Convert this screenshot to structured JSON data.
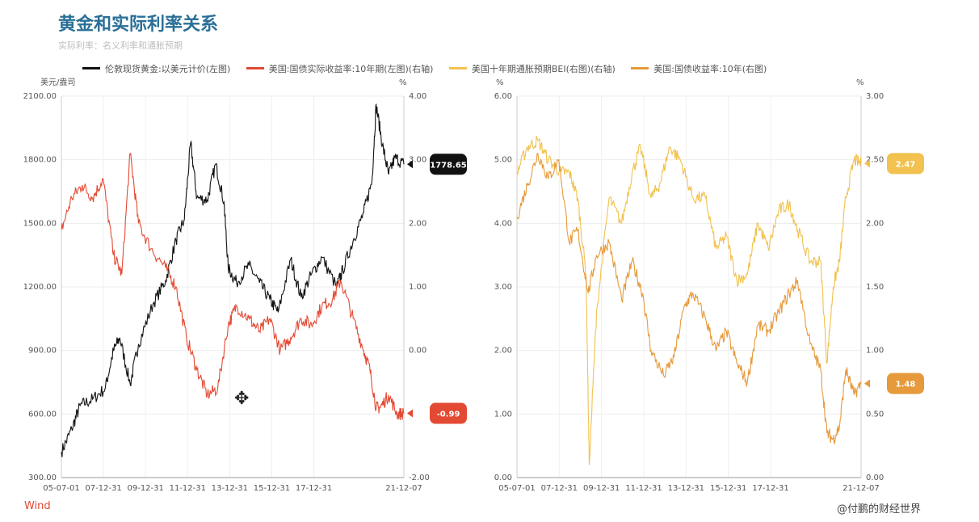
{
  "header": {
    "title": "黄金和实际利率关系",
    "subtitle": "实际利率：名义利率和通胀预期"
  },
  "legend": [
    {
      "label": "伦敦现货黄金:以美元计价(左图)",
      "color": "#111111"
    },
    {
      "label": "美国:国债实际收益率:10年期(左图)(右轴)",
      "color": "#e34a33"
    },
    {
      "label": "美国十年期通胀预期BEI(右图)(右轴)",
      "color": "#f2c14e"
    },
    {
      "label": "美国:国债收益率:10年(右图)",
      "color": "#e69a3b"
    }
  ],
  "footer": {
    "source": "Wind",
    "watermark": "@付鹏的财经世界"
  },
  "chart_data": [
    {
      "type": "line",
      "left_axis_unit": "美元/盎司",
      "right_axis_unit": "%",
      "left_ylim": [
        300,
        2100
      ],
      "left_ticks": [
        "300.00",
        "600.00",
        "900.00",
        "1200.00",
        "1500.00",
        "1800.00",
        "2100.00"
      ],
      "right_ylim": [
        -2,
        4
      ],
      "right_ticks": [
        "-2.00",
        "0.00",
        "1.00",
        "2.00",
        "3.00",
        "4.00"
      ],
      "x_ticks": [
        "05-07-01",
        "07-12-31",
        "09-12-31",
        "11-12-31",
        "13-12-31",
        "15-12-31",
        "17-12-31",
        "21-12-07"
      ],
      "x_range": [
        2005.5,
        2021.93
      ],
      "series": [
        {
          "name": "伦敦现货黄金:以美元计价(左图)",
          "axis": "left",
          "color": "#111111",
          "x": [
            2005.5,
            2006.0,
            2006.4,
            2007.0,
            2007.6,
            2008.0,
            2008.3,
            2008.8,
            2009.2,
            2009.9,
            2010.5,
            2011.0,
            2011.4,
            2011.7,
            2012.0,
            2012.5,
            2012.9,
            2013.3,
            2013.5,
            2013.9,
            2014.5,
            2015.0,
            2015.5,
            2015.9,
            2016.5,
            2017.0,
            2017.5,
            2018.0,
            2018.7,
            2019.0,
            2019.5,
            2020.0,
            2020.4,
            2020.6,
            2020.9,
            2021.2,
            2021.5,
            2021.93
          ],
          "values": [
            420,
            530,
            640,
            670,
            720,
            900,
            960,
            740,
            930,
            1120,
            1230,
            1420,
            1520,
            1880,
            1620,
            1610,
            1780,
            1600,
            1290,
            1220,
            1300,
            1220,
            1140,
            1080,
            1330,
            1150,
            1260,
            1340,
            1200,
            1280,
            1420,
            1550,
            1700,
            2060,
            1870,
            1730,
            1810,
            1778.65
          ]
        },
        {
          "name": "美国:国债实际收益率:10年期(左图)(右轴)",
          "axis": "right",
          "color": "#e34a33",
          "x": [
            2005.5,
            2006.0,
            2006.5,
            2007.0,
            2007.5,
            2008.0,
            2008.4,
            2008.8,
            2009.2,
            2009.8,
            2010.5,
            2011.0,
            2011.5,
            2012.0,
            2012.5,
            2013.0,
            2013.5,
            2013.9,
            2014.5,
            2015.0,
            2015.5,
            2016.0,
            2016.5,
            2017.0,
            2017.5,
            2018.0,
            2018.5,
            2018.9,
            2019.5,
            2020.0,
            2020.3,
            2020.6,
            2020.8,
            2021.2,
            2021.6,
            2021.93
          ],
          "values": [
            1.9,
            2.4,
            2.6,
            2.4,
            2.7,
            1.5,
            1.2,
            3.1,
            2.0,
            1.6,
            1.3,
            1.0,
            0.2,
            -0.3,
            -0.7,
            -0.6,
            0.4,
            0.7,
            0.5,
            0.3,
            0.5,
            0.0,
            0.2,
            0.5,
            0.4,
            0.7,
            0.8,
            1.1,
            0.5,
            0.0,
            -0.3,
            -0.9,
            -0.9,
            -0.7,
            -1.0,
            -0.99
          ]
        }
      ],
      "labels": [
        {
          "series": "伦敦现货黄金:以美元计价(左图)",
          "value": "1778.65",
          "axis_value": 1778.65,
          "axis": "left"
        },
        {
          "series": "美国:国债实际收益率:10年期(左图)(右轴)",
          "value": "-0.99",
          "axis_value": -0.99,
          "axis": "right"
        }
      ]
    },
    {
      "type": "line",
      "left_axis_unit": "%",
      "right_axis_unit": "%",
      "left_ylim": [
        0,
        6
      ],
      "left_ticks": [
        "0.00",
        "1.00",
        "2.00",
        "3.00",
        "4.00",
        "5.00",
        "6.00"
      ],
      "right_ylim": [
        0,
        3
      ],
      "right_ticks": [
        "0.00",
        "0.50",
        "1.00",
        "1.50",
        "2.00",
        "2.50",
        "3.00"
      ],
      "x_ticks": [
        "05-07-01",
        "07-12-31",
        "09-12-31",
        "11-12-31",
        "13-12-31",
        "15-12-31",
        "17-12-31",
        "21-12-07"
      ],
      "x_range": [
        2005.5,
        2021.93
      ],
      "series": [
        {
          "name": "美国十年期通胀预期BEI(右图)(右轴)",
          "axis": "right",
          "color": "#f2c14e",
          "x": [
            2005.5,
            2006.0,
            2006.5,
            2007.0,
            2007.6,
            2008.0,
            2008.4,
            2008.8,
            2008.95,
            2009.3,
            2009.9,
            2010.5,
            2011.0,
            2011.4,
            2011.9,
            2012.3,
            2012.8,
            2013.3,
            2013.9,
            2014.5,
            2015.0,
            2015.5,
            2016.0,
            2016.5,
            2017.0,
            2017.5,
            2018.0,
            2018.5,
            2018.9,
            2019.5,
            2020.0,
            2020.3,
            2020.6,
            2020.9,
            2021.2,
            2021.6,
            2021.93
          ],
          "values": [
            2.4,
            2.6,
            2.65,
            2.5,
            2.4,
            2.4,
            2.2,
            1.6,
            0.1,
            1.3,
            2.2,
            2.0,
            2.4,
            2.6,
            2.2,
            2.3,
            2.6,
            2.5,
            2.2,
            2.2,
            1.8,
            1.9,
            1.55,
            1.6,
            2.0,
            1.8,
            2.1,
            2.15,
            1.95,
            1.7,
            1.7,
            0.9,
            1.5,
            1.7,
            2.2,
            2.5,
            2.47
          ]
        },
        {
          "name": "美国:国债收益率:10年(右图)",
          "axis": "left",
          "color": "#e69a3b",
          "x": [
            2005.5,
            2006.0,
            2006.5,
            2007.0,
            2007.5,
            2008.0,
            2008.4,
            2008.9,
            2009.3,
            2009.9,
            2010.5,
            2011.0,
            2011.5,
            2011.9,
            2012.5,
            2013.0,
            2013.5,
            2013.9,
            2014.5,
            2015.0,
            2015.5,
            2016.0,
            2016.5,
            2017.0,
            2017.5,
            2018.0,
            2018.5,
            2018.9,
            2019.5,
            2020.0,
            2020.3,
            2020.6,
            2020.9,
            2021.2,
            2021.6,
            2021.93
          ],
          "values": [
            4.1,
            4.6,
            5.1,
            4.7,
            5.0,
            3.7,
            3.9,
            2.9,
            3.5,
            3.7,
            2.8,
            3.4,
            2.9,
            2.0,
            1.6,
            1.9,
            2.7,
            2.9,
            2.5,
            2.0,
            2.3,
            1.8,
            1.5,
            2.4,
            2.3,
            2.6,
            2.9,
            3.1,
            2.1,
            1.7,
            0.7,
            0.6,
            0.8,
            1.7,
            1.3,
            1.48
          ]
        }
      ],
      "labels": [
        {
          "series": "美国十年期通胀预期BEI(右图)(右轴)",
          "value": "2.47",
          "axis_value": 2.47,
          "axis": "right"
        },
        {
          "series": "美国:国债收益率:10年(右图)",
          "value": "1.48",
          "axis_value": 1.48,
          "axis": "left"
        }
      ]
    }
  ]
}
